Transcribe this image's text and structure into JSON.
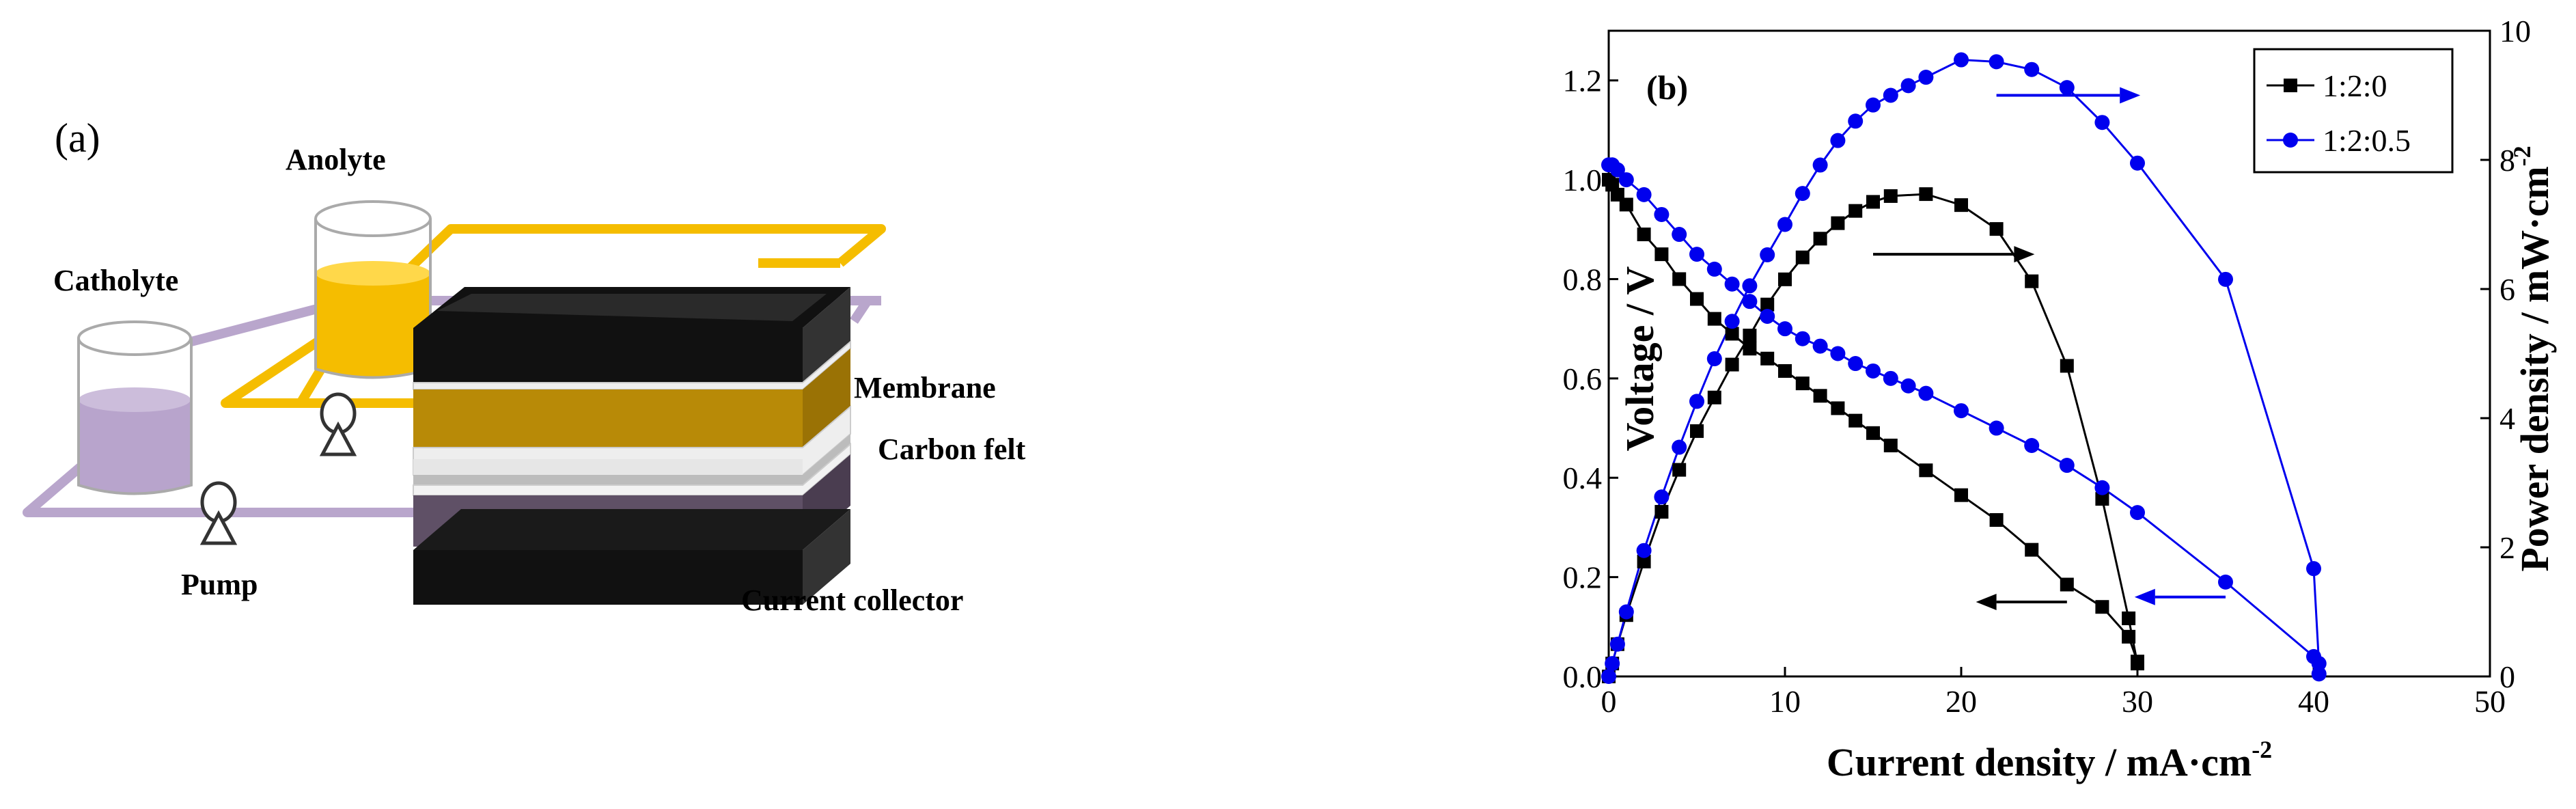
{
  "panel_a": {
    "label": "(a)",
    "anolyte": "Anolyte",
    "catholyte": "Catholyte",
    "pump": "Pump",
    "membrane": "Membrane",
    "carbon_felt": "Carbon felt",
    "current_collector": "Current collector",
    "colors": {
      "anolyte": "#f5bd00",
      "catholyte": "#b8a4cc",
      "tube_cathode": "#b9a6cc",
      "felt_top": "#b88a07",
      "felt_bottom": "#5f5066",
      "collector": "#111111"
    }
  },
  "chart_data": {
    "type": "scatter",
    "panel_label": "(b)",
    "xlabel": "Current density / mA·cm",
    "xlabel_sup": "-2",
    "ylabel": "Voltage / V",
    "y2label": "Power density / mW·cm",
    "y2label_sup": "-2",
    "xlim": [
      0,
      50
    ],
    "ylim": [
      0,
      1.3
    ],
    "y2lim": [
      0,
      10
    ],
    "xticks": [
      0,
      10,
      20,
      30,
      40,
      50
    ],
    "yticks": [
      0.0,
      0.2,
      0.4,
      0.6,
      0.8,
      1.0,
      1.2
    ],
    "y2ticks": [
      0,
      2,
      4,
      6,
      8,
      10
    ],
    "tick_labels_x": [
      "0",
      "10",
      "20",
      "30",
      "40",
      "50"
    ],
    "tick_labels_y": [
      "0.0",
      "0.2",
      "0.4",
      "0.6",
      "0.8",
      "1.0",
      "1.2"
    ],
    "tick_labels_y2": [
      "0",
      "2",
      "4",
      "6",
      "8",
      "10"
    ],
    "legend_position": "top-right",
    "series": [
      {
        "name": "1:2:0",
        "color": "#000000",
        "marker": "square",
        "polarization": {
          "x": [
            0,
            0.2,
            0.5,
            1,
            2,
            3,
            4,
            5,
            6,
            7,
            8,
            9,
            10,
            11,
            12,
            13,
            14,
            15,
            16,
            18,
            20,
            22,
            24,
            26,
            28,
            29.5,
            30
          ],
          "y": [
            1.0,
            0.99,
            0.97,
            0.95,
            0.89,
            0.85,
            0.8,
            0.76,
            0.72,
            0.69,
            0.66,
            0.64,
            0.615,
            0.59,
            0.565,
            0.54,
            0.515,
            0.49,
            0.465,
            0.415,
            0.365,
            0.315,
            0.255,
            0.185,
            0.14,
            0.08,
            0.03
          ]
        },
        "power": {
          "x": [
            0,
            0.2,
            0.5,
            1,
            2,
            3,
            4,
            5,
            6,
            7,
            8,
            9,
            10,
            11,
            12,
            13,
            14,
            15,
            16,
            18,
            20,
            22,
            24,
            26,
            28,
            29.5,
            30
          ],
          "y": [
            0,
            0.2,
            0.5,
            0.95,
            1.78,
            2.55,
            3.2,
            3.8,
            4.32,
            4.83,
            5.28,
            5.76,
            6.15,
            6.49,
            6.78,
            7.02,
            7.21,
            7.35,
            7.44,
            7.47,
            7.3,
            6.93,
            6.12,
            4.81,
            2.75,
            0.9,
            0.2
          ]
        }
      },
      {
        "name": "1:2:0.5",
        "color": "#0000ee",
        "marker": "circle",
        "polarization": {
          "x": [
            0,
            0.2,
            0.5,
            1,
            2,
            3,
            4,
            5,
            6,
            7,
            8,
            9,
            10,
            11,
            12,
            13,
            14,
            15,
            16,
            17,
            18,
            20,
            22,
            24,
            26,
            28,
            30,
            35,
            40,
            40.3
          ],
          "y": [
            1.03,
            1.03,
            1.02,
            1.0,
            0.97,
            0.93,
            0.89,
            0.85,
            0.82,
            0.79,
            0.755,
            0.725,
            0.7,
            0.68,
            0.665,
            0.65,
            0.63,
            0.615,
            0.6,
            0.585,
            0.57,
            0.535,
            0.5,
            0.465,
            0.425,
            0.38,
            0.33,
            0.19,
            0.04,
            0.005
          ]
        },
        "power": {
          "x": [
            0,
            0.2,
            0.5,
            1,
            2,
            3,
            4,
            5,
            6,
            7,
            8,
            9,
            10,
            11,
            12,
            13,
            14,
            15,
            16,
            17,
            18,
            20,
            22,
            24,
            26,
            28,
            30,
            35,
            40,
            40.3
          ],
          "y": [
            0,
            0.2,
            0.5,
            1.0,
            1.95,
            2.78,
            3.55,
            4.26,
            4.92,
            5.5,
            6.05,
            6.53,
            7.0,
            7.48,
            7.92,
            8.3,
            8.6,
            8.85,
            9.0,
            9.15,
            9.28,
            9.55,
            9.52,
            9.4,
            9.12,
            8.58,
            7.95,
            6.15,
            1.67,
            0.2
          ]
        }
      }
    ],
    "axis_arrows": [
      {
        "series": "1:2:0",
        "curve": "power",
        "from_x": 15,
        "to_x": 23,
        "y_axis": "left",
        "y": 0.85,
        "direction": "right"
      },
      {
        "series": "1:2:0",
        "curve": "polarization",
        "from_x": 26,
        "to_x": 22,
        "y_axis": "left",
        "y": 0.15,
        "direction": "left"
      },
      {
        "series": "1:2:0.5",
        "curve": "power",
        "from_x": 22,
        "to_x": 29,
        "y_axis": "left",
        "y": 1.17,
        "direction": "right"
      },
      {
        "series": "1:2:0.5",
        "curve": "polarization",
        "from_x": 35,
        "to_x": 31,
        "y_axis": "left",
        "y": 0.16,
        "direction": "left"
      }
    ]
  }
}
